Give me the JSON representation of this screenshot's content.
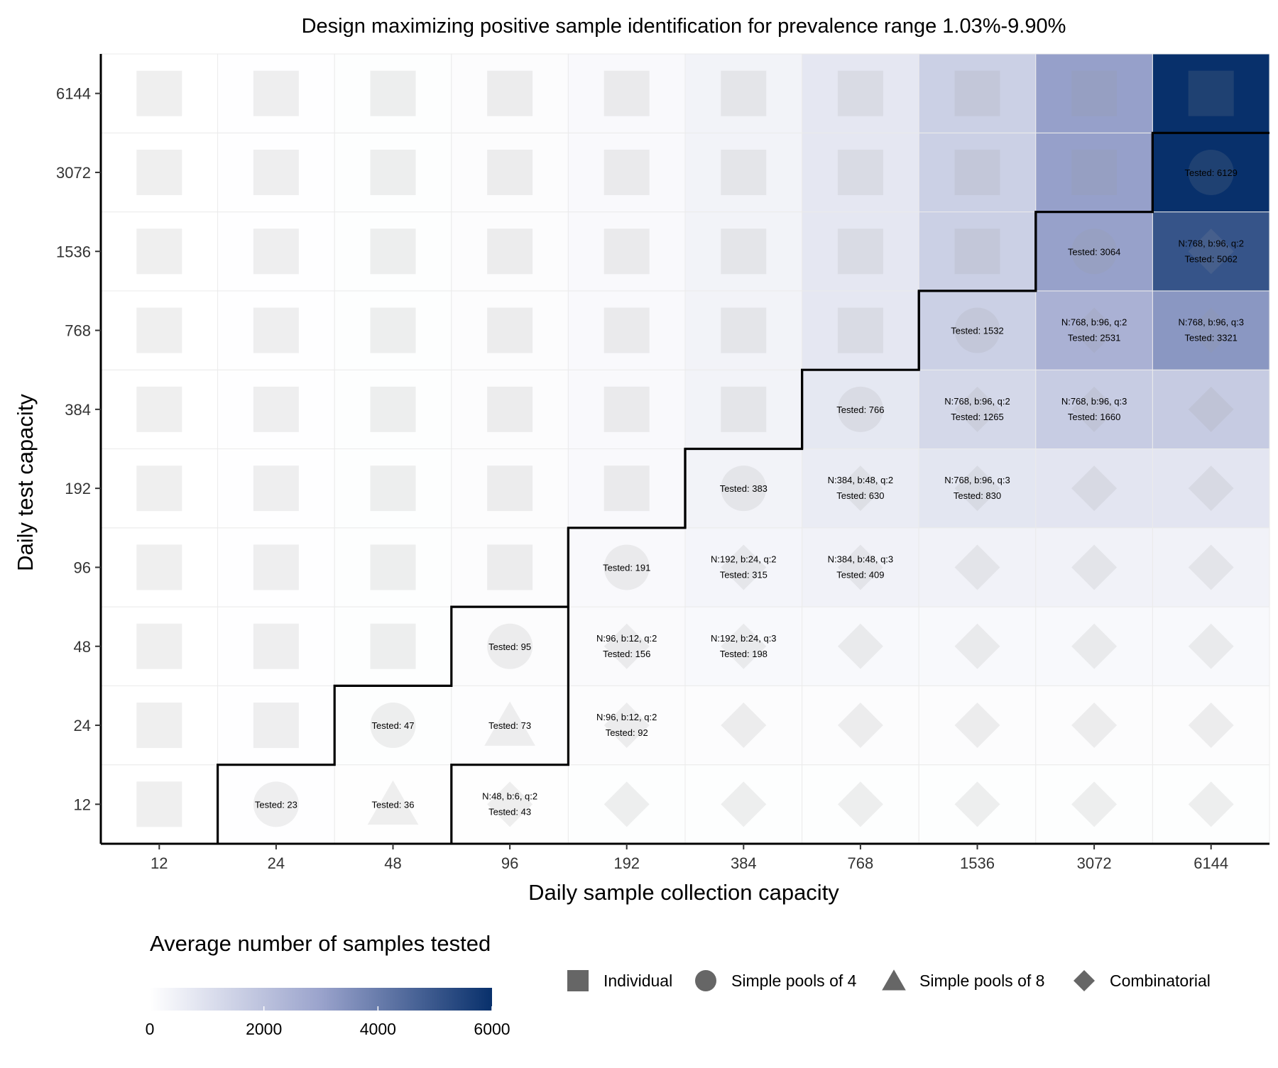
{
  "chart_data": {
    "type": "heatmap",
    "title": "Design maximizing positive sample identification for prevalence range 1.03%-9.90%",
    "xlabel": "Daily sample collection capacity",
    "ylabel": "Daily test capacity",
    "x_categories": [
      "12",
      "24",
      "48",
      "96",
      "192",
      "384",
      "768",
      "1536",
      "3072",
      "6144"
    ],
    "y_categories": [
      "12",
      "24",
      "48",
      "96",
      "192",
      "384",
      "768",
      "1536",
      "3072",
      "6144"
    ],
    "color_scale": {
      "min": 0,
      "max": 6000,
      "low": "#ffffff",
      "high": "#08306b"
    },
    "colorbar_ticks": [
      "0",
      "2000",
      "4000",
      "6000"
    ],
    "legend_title": "Average number of samples tested",
    "shape_legend": [
      {
        "shape": "square",
        "label": "Individual"
      },
      {
        "shape": "circle",
        "label": "Simple pools of 4"
      },
      {
        "shape": "triangle",
        "label": "Simple pools of 8"
      },
      {
        "shape": "diamond",
        "label": "Combinatorial"
      }
    ],
    "cells": [
      {
        "x": "12",
        "y": "12",
        "value": 12,
        "shape": "square"
      },
      {
        "x": "24",
        "y": "12",
        "value": 23,
        "shape": "circle",
        "labels": [
          "Tested: 23"
        ]
      },
      {
        "x": "48",
        "y": "12",
        "value": 36,
        "shape": "triangle",
        "labels": [
          "Tested: 36"
        ]
      },
      {
        "x": "96",
        "y": "12",
        "value": 43,
        "shape": "diamond",
        "labels": [
          "N:48, b:6, q:2",
          "Tested: 43"
        ]
      },
      {
        "x": "192",
        "y": "12",
        "value": 45,
        "shape": "diamond"
      },
      {
        "x": "384",
        "y": "12",
        "value": 45,
        "shape": "diamond"
      },
      {
        "x": "768",
        "y": "12",
        "value": 45,
        "shape": "diamond"
      },
      {
        "x": "1536",
        "y": "12",
        "value": 45,
        "shape": "diamond"
      },
      {
        "x": "3072",
        "y": "12",
        "value": 45,
        "shape": "diamond"
      },
      {
        "x": "6144",
        "y": "12",
        "value": 45,
        "shape": "diamond"
      },
      {
        "x": "12",
        "y": "24",
        "value": 12,
        "shape": "square"
      },
      {
        "x": "24",
        "y": "24",
        "value": 24,
        "shape": "square"
      },
      {
        "x": "48",
        "y": "24",
        "value": 47,
        "shape": "circle",
        "labels": [
          "Tested: 47"
        ]
      },
      {
        "x": "96",
        "y": "24",
        "value": 73,
        "shape": "triangle",
        "labels": [
          "Tested: 73"
        ]
      },
      {
        "x": "192",
        "y": "24",
        "value": 92,
        "shape": "diamond",
        "labels": [
          "N:96, b:12, q:2",
          "Tested: 92"
        ]
      },
      {
        "x": "384",
        "y": "24",
        "value": 95,
        "shape": "diamond"
      },
      {
        "x": "768",
        "y": "24",
        "value": 95,
        "shape": "diamond"
      },
      {
        "x": "1536",
        "y": "24",
        "value": 95,
        "shape": "diamond"
      },
      {
        "x": "3072",
        "y": "24",
        "value": 95,
        "shape": "diamond"
      },
      {
        "x": "6144",
        "y": "24",
        "value": 95,
        "shape": "diamond"
      },
      {
        "x": "12",
        "y": "48",
        "value": 12,
        "shape": "square"
      },
      {
        "x": "24",
        "y": "48",
        "value": 24,
        "shape": "square"
      },
      {
        "x": "48",
        "y": "48",
        "value": 48,
        "shape": "square"
      },
      {
        "x": "96",
        "y": "48",
        "value": 95,
        "shape": "circle",
        "labels": [
          "Tested: 95"
        ]
      },
      {
        "x": "192",
        "y": "48",
        "value": 156,
        "shape": "diamond",
        "labels": [
          "N:96, b:12, q:2",
          "Tested: 156"
        ]
      },
      {
        "x": "384",
        "y": "48",
        "value": 198,
        "shape": "diamond",
        "labels": [
          "N:192, b:24, q:3",
          "Tested: 198"
        ]
      },
      {
        "x": "768",
        "y": "48",
        "value": 205,
        "shape": "diamond"
      },
      {
        "x": "1536",
        "y": "48",
        "value": 205,
        "shape": "diamond"
      },
      {
        "x": "3072",
        "y": "48",
        "value": 205,
        "shape": "diamond"
      },
      {
        "x": "6144",
        "y": "48",
        "value": 205,
        "shape": "diamond"
      },
      {
        "x": "12",
        "y": "96",
        "value": 12,
        "shape": "square"
      },
      {
        "x": "24",
        "y": "96",
        "value": 24,
        "shape": "square"
      },
      {
        "x": "48",
        "y": "96",
        "value": 48,
        "shape": "square"
      },
      {
        "x": "96",
        "y": "96",
        "value": 96,
        "shape": "square"
      },
      {
        "x": "192",
        "y": "96",
        "value": 191,
        "shape": "circle",
        "labels": [
          "Tested: 191"
        ]
      },
      {
        "x": "384",
        "y": "96",
        "value": 315,
        "shape": "diamond",
        "labels": [
          "N:192, b:24, q:2",
          "Tested: 315"
        ]
      },
      {
        "x": "768",
        "y": "96",
        "value": 409,
        "shape": "diamond",
        "labels": [
          "N:384, b:48, q:3",
          "Tested: 409"
        ]
      },
      {
        "x": "1536",
        "y": "96",
        "value": 420,
        "shape": "diamond"
      },
      {
        "x": "3072",
        "y": "96",
        "value": 420,
        "shape": "diamond"
      },
      {
        "x": "6144",
        "y": "96",
        "value": 420,
        "shape": "diamond"
      },
      {
        "x": "12",
        "y": "192",
        "value": 12,
        "shape": "square"
      },
      {
        "x": "24",
        "y": "192",
        "value": 24,
        "shape": "square"
      },
      {
        "x": "48",
        "y": "192",
        "value": 48,
        "shape": "square"
      },
      {
        "x": "96",
        "y": "192",
        "value": 96,
        "shape": "square"
      },
      {
        "x": "192",
        "y": "192",
        "value": 192,
        "shape": "square"
      },
      {
        "x": "384",
        "y": "192",
        "value": 383,
        "shape": "circle",
        "labels": [
          "Tested: 383"
        ]
      },
      {
        "x": "768",
        "y": "192",
        "value": 630,
        "shape": "diamond",
        "labels": [
          "N:384, b:48, q:2",
          "Tested: 630"
        ]
      },
      {
        "x": "1536",
        "y": "192",
        "value": 830,
        "shape": "diamond",
        "labels": [
          "N:768, b:96, q:3",
          "Tested: 830"
        ]
      },
      {
        "x": "3072",
        "y": "192",
        "value": 840,
        "shape": "diamond"
      },
      {
        "x": "6144",
        "y": "192",
        "value": 840,
        "shape": "diamond"
      },
      {
        "x": "12",
        "y": "384",
        "value": 12,
        "shape": "square"
      },
      {
        "x": "24",
        "y": "384",
        "value": 24,
        "shape": "square"
      },
      {
        "x": "48",
        "y": "384",
        "value": 48,
        "shape": "square"
      },
      {
        "x": "96",
        "y": "384",
        "value": 96,
        "shape": "square"
      },
      {
        "x": "192",
        "y": "384",
        "value": 192,
        "shape": "square"
      },
      {
        "x": "384",
        "y": "384",
        "value": 384,
        "shape": "square"
      },
      {
        "x": "768",
        "y": "384",
        "value": 766,
        "shape": "circle",
        "labels": [
          "Tested: 766"
        ]
      },
      {
        "x": "1536",
        "y": "384",
        "value": 1265,
        "shape": "diamond",
        "labels": [
          "N:768, b:96, q:2",
          "Tested: 1265"
        ]
      },
      {
        "x": "3072",
        "y": "384",
        "value": 1660,
        "shape": "diamond",
        "labels": [
          "N:768, b:96, q:3",
          "Tested: 1660"
        ]
      },
      {
        "x": "6144",
        "y": "384",
        "value": 1680,
        "shape": "diamond"
      },
      {
        "x": "12",
        "y": "768",
        "value": 12,
        "shape": "square"
      },
      {
        "x": "24",
        "y": "768",
        "value": 24,
        "shape": "square"
      },
      {
        "x": "48",
        "y": "768",
        "value": 48,
        "shape": "square"
      },
      {
        "x": "96",
        "y": "768",
        "value": 96,
        "shape": "square"
      },
      {
        "x": "192",
        "y": "768",
        "value": 192,
        "shape": "square"
      },
      {
        "x": "384",
        "y": "768",
        "value": 384,
        "shape": "square"
      },
      {
        "x": "768",
        "y": "768",
        "value": 768,
        "shape": "square"
      },
      {
        "x": "1536",
        "y": "768",
        "value": 1532,
        "shape": "circle",
        "labels": [
          "Tested: 1532"
        ]
      },
      {
        "x": "3072",
        "y": "768",
        "value": 2531,
        "shape": "diamond",
        "labels": [
          "N:768, b:96, q:2",
          "Tested: 2531"
        ]
      },
      {
        "x": "6144",
        "y": "768",
        "value": 3321,
        "shape": "diamond",
        "labels": [
          "N:768, b:96, q:3",
          "Tested: 3321"
        ]
      },
      {
        "x": "12",
        "y": "1536",
        "value": 12,
        "shape": "square"
      },
      {
        "x": "24",
        "y": "1536",
        "value": 24,
        "shape": "square"
      },
      {
        "x": "48",
        "y": "1536",
        "value": 48,
        "shape": "square"
      },
      {
        "x": "96",
        "y": "1536",
        "value": 96,
        "shape": "square"
      },
      {
        "x": "192",
        "y": "1536",
        "value": 192,
        "shape": "square"
      },
      {
        "x": "384",
        "y": "1536",
        "value": 384,
        "shape": "square"
      },
      {
        "x": "768",
        "y": "1536",
        "value": 768,
        "shape": "square"
      },
      {
        "x": "1536",
        "y": "1536",
        "value": 1536,
        "shape": "square"
      },
      {
        "x": "3072",
        "y": "1536",
        "value": 3064,
        "shape": "circle",
        "labels": [
          "Tested: 3064"
        ]
      },
      {
        "x": "6144",
        "y": "1536",
        "value": 5062,
        "shape": "diamond",
        "labels": [
          "N:768, b:96, q:2",
          "Tested: 5062"
        ]
      },
      {
        "x": "12",
        "y": "3072",
        "value": 12,
        "shape": "square"
      },
      {
        "x": "24",
        "y": "3072",
        "value": 24,
        "shape": "square"
      },
      {
        "x": "48",
        "y": "3072",
        "value": 48,
        "shape": "square"
      },
      {
        "x": "96",
        "y": "3072",
        "value": 96,
        "shape": "square"
      },
      {
        "x": "192",
        "y": "3072",
        "value": 192,
        "shape": "square"
      },
      {
        "x": "384",
        "y": "3072",
        "value": 384,
        "shape": "square"
      },
      {
        "x": "768",
        "y": "3072",
        "value": 768,
        "shape": "square"
      },
      {
        "x": "1536",
        "y": "3072",
        "value": 1536,
        "shape": "square"
      },
      {
        "x": "3072",
        "y": "3072",
        "value": 3072,
        "shape": "square"
      },
      {
        "x": "6144",
        "y": "3072",
        "value": 6129,
        "shape": "circle",
        "labels": [
          "Tested: 6129"
        ]
      },
      {
        "x": "12",
        "y": "6144",
        "value": 12,
        "shape": "square"
      },
      {
        "x": "24",
        "y": "6144",
        "value": 24,
        "shape": "square"
      },
      {
        "x": "48",
        "y": "6144",
        "value": 48,
        "shape": "square"
      },
      {
        "x": "96",
        "y": "6144",
        "value": 96,
        "shape": "square"
      },
      {
        "x": "192",
        "y": "6144",
        "value": 192,
        "shape": "square"
      },
      {
        "x": "384",
        "y": "6144",
        "value": 384,
        "shape": "square"
      },
      {
        "x": "768",
        "y": "6144",
        "value": 768,
        "shape": "square"
      },
      {
        "x": "1536",
        "y": "6144",
        "value": 1536,
        "shape": "square"
      },
      {
        "x": "3072",
        "y": "6144",
        "value": 3072,
        "shape": "square"
      },
      {
        "x": "6144",
        "y": "6144",
        "value": 6144,
        "shape": "square"
      }
    ]
  }
}
